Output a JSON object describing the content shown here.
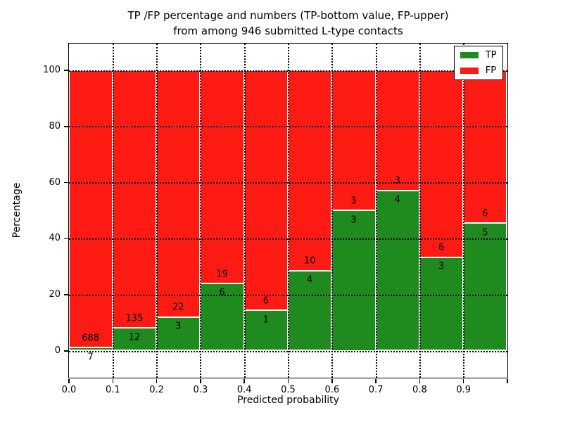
{
  "title": {
    "line1": "TP /FP percentage and numbers (TP-bottom value, FP-upper)",
    "line2": "from among 946 submitted L-type contacts"
  },
  "axes": {
    "xlabel": "Predicted probability",
    "ylabel": "Percentage",
    "xtick_labels": [
      "0.0",
      "0.1",
      "0.2",
      "0.3",
      "0.4",
      "0.5",
      "0.6",
      "0.7",
      "0.8",
      "0.9"
    ],
    "ytick_labels": [
      "0",
      "20",
      "40",
      "60",
      "80",
      "100"
    ],
    "ytick_values": [
      0,
      20,
      40,
      60,
      80,
      100
    ]
  },
  "legend": {
    "items": [
      {
        "label": "TP",
        "color": "#1f8b1f"
      },
      {
        "label": "FP",
        "color": "#fd1b14"
      }
    ]
  },
  "colors": {
    "tp": "#1f8b1f",
    "fp": "#fd1b14",
    "bar_edge": "#ffffff",
    "grid": "#000000",
    "frame": "#000000",
    "background": "#ffffff"
  },
  "chart_data": {
    "type": "bar",
    "stacked": true,
    "title": "TP /FP percentage and numbers (TP-bottom value, FP-upper) from among 946 submitted L-type contacts",
    "xlabel": "Predicted probability",
    "ylabel": "Percentage",
    "total_contacts": 946,
    "bins": [
      "0.0-0.1",
      "0.1-0.2",
      "0.2-0.3",
      "0.3-0.4",
      "0.4-0.5",
      "0.5-0.6",
      "0.6-0.7",
      "0.7-0.8",
      "0.8-0.9",
      "0.9-1.0"
    ],
    "series": [
      {
        "name": "TP",
        "color": "#1f8b1f",
        "counts": [
          7,
          12,
          3,
          6,
          1,
          4,
          3,
          4,
          3,
          5
        ],
        "percent": [
          1.01,
          8.16,
          12.0,
          24.0,
          14.29,
          28.57,
          50.0,
          57.14,
          33.33,
          45.45
        ]
      },
      {
        "name": "FP",
        "color": "#fd1b14",
        "counts": [
          688,
          135,
          22,
          19,
          6,
          10,
          3,
          3,
          6,
          6
        ],
        "percent": [
          98.99,
          91.84,
          88.0,
          76.0,
          85.71,
          71.43,
          50.0,
          42.86,
          66.67,
          54.55
        ]
      }
    ],
    "ylim": [
      -9.5,
      109.5
    ],
    "xlim": [
      0.0,
      1.0
    ],
    "grid": "dotted",
    "legend_position": "upper right"
  }
}
